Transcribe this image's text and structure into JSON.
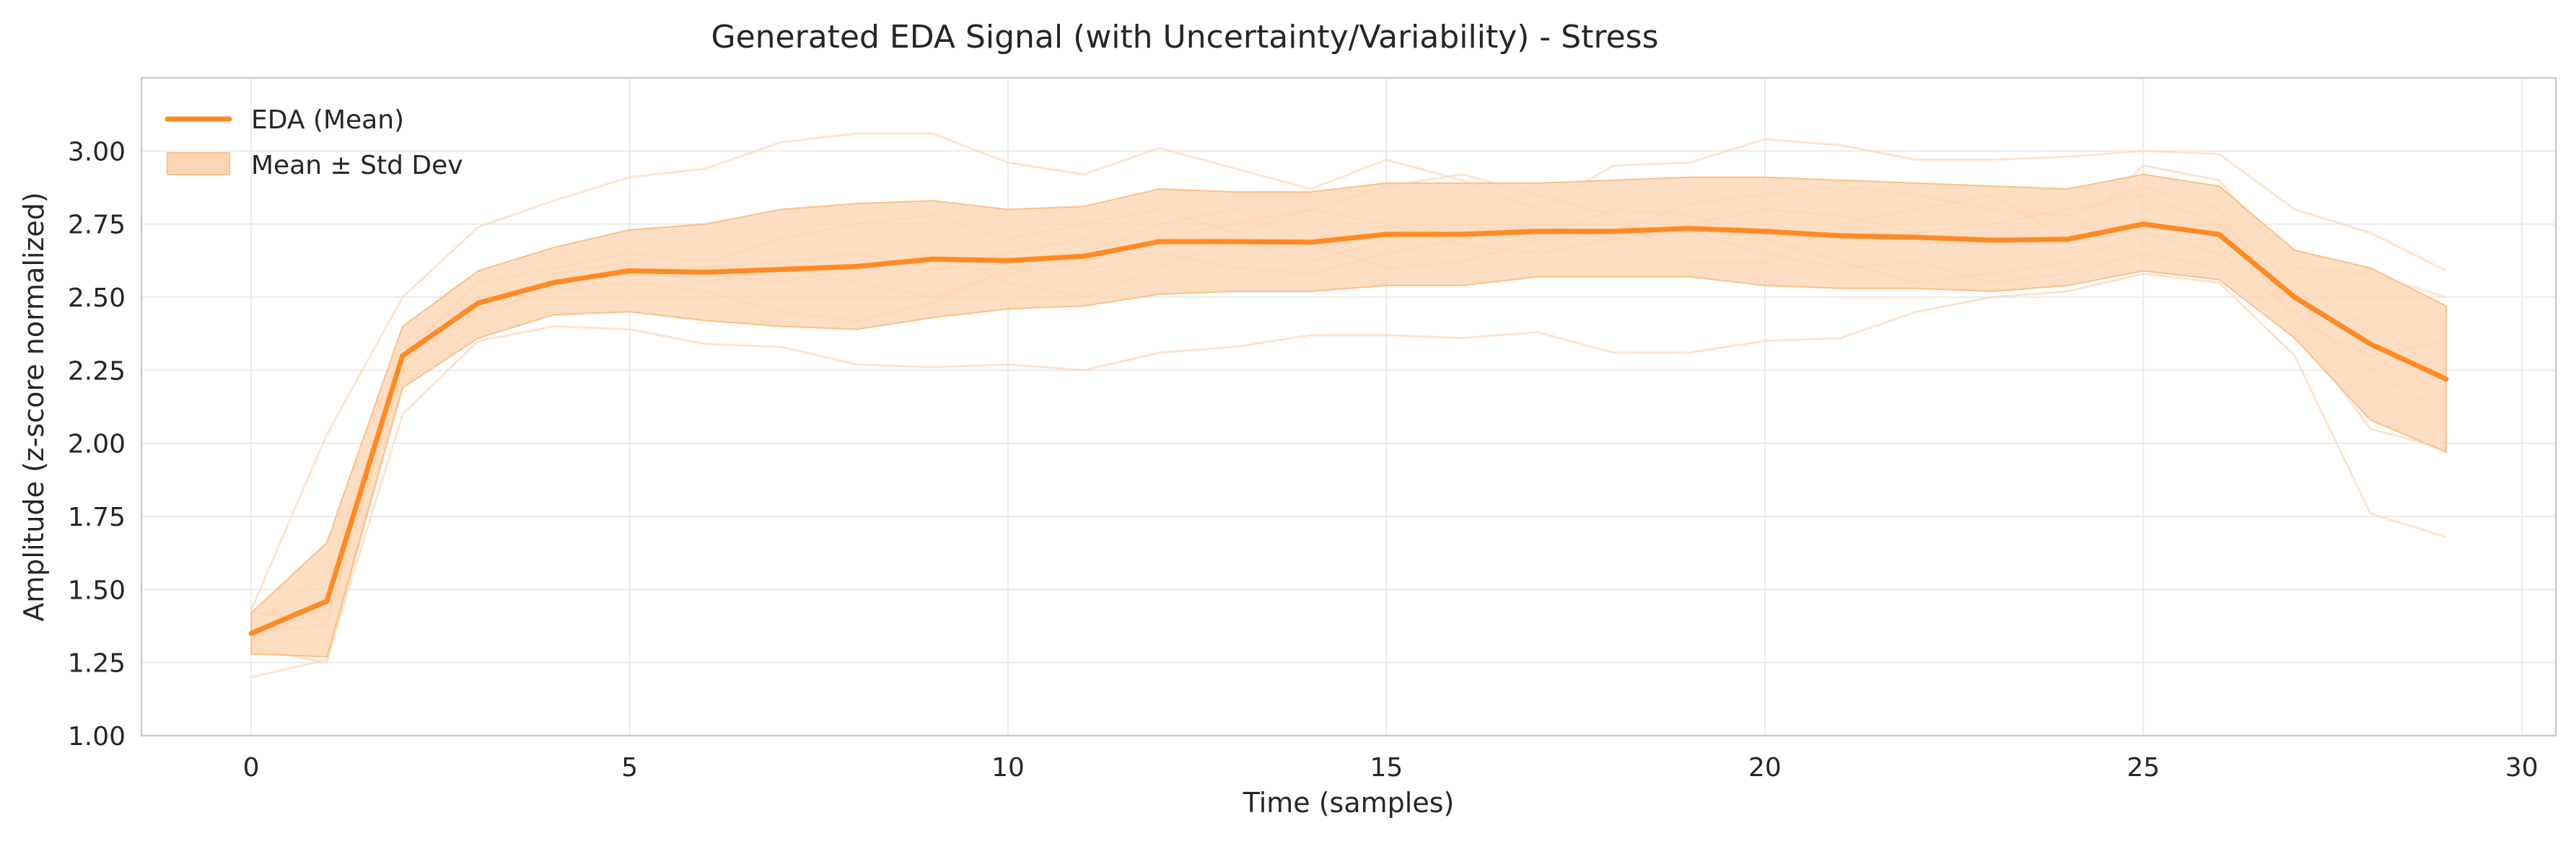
{
  "chart_data": {
    "type": "line",
    "title": "Generated EDA Signal (with Uncertainty/Variability) - Stress",
    "xlabel": "Time (samples)",
    "ylabel": "Amplitude (z-score normalized)",
    "xlim": [
      -1.45,
      30.45
    ],
    "ylim": [
      1.0,
      3.25
    ],
    "xticks": [
      0,
      5,
      10,
      15,
      20,
      25,
      30
    ],
    "yticks": [
      1.0,
      1.25,
      1.5,
      1.75,
      2.0,
      2.25,
      2.5,
      2.75,
      3.0
    ],
    "ytick_labels": [
      "1.00",
      "1.25",
      "1.50",
      "1.75",
      "2.00",
      "2.25",
      "2.50",
      "2.75",
      "3.00"
    ],
    "grid": true,
    "legend_position": "top-left",
    "colors": {
      "mean": "#ff8a24",
      "band": "#fdd6b3",
      "band_edge": "#fbbf8a",
      "samples": "#fcd5b5",
      "grid": "#ebebeb",
      "spine": "#cccccc",
      "text": "#262626"
    },
    "x": [
      0,
      1,
      2,
      3,
      4,
      5,
      6,
      7,
      8,
      9,
      10,
      11,
      12,
      13,
      14,
      15,
      16,
      17,
      18,
      19,
      20,
      21,
      22,
      23,
      24,
      25,
      26,
      27,
      28,
      29
    ],
    "series": [
      {
        "name": "EDA (Mean)",
        "values": [
          1.35,
          1.46,
          2.3,
          2.48,
          2.55,
          2.59,
          2.585,
          2.595,
          2.605,
          2.63,
          2.625,
          2.64,
          2.69,
          2.69,
          2.688,
          2.715,
          2.715,
          2.725,
          2.725,
          2.735,
          2.725,
          2.71,
          2.705,
          2.695,
          2.698,
          2.75,
          2.715,
          2.5,
          2.34,
          2.22
        ]
      }
    ],
    "band": {
      "name": "Mean ± Std Dev",
      "upper": [
        1.42,
        1.66,
        2.4,
        2.59,
        2.67,
        2.73,
        2.75,
        2.8,
        2.82,
        2.83,
        2.8,
        2.81,
        2.87,
        2.86,
        2.86,
        2.89,
        2.89,
        2.89,
        2.9,
        2.91,
        2.91,
        2.9,
        2.89,
        2.88,
        2.87,
        2.92,
        2.88,
        2.66,
        2.6,
        2.47
      ],
      "lower": [
        1.28,
        1.27,
        2.19,
        2.36,
        2.44,
        2.45,
        2.42,
        2.4,
        2.39,
        2.43,
        2.46,
        2.47,
        2.51,
        2.52,
        2.52,
        2.54,
        2.54,
        2.57,
        2.57,
        2.57,
        2.54,
        2.53,
        2.53,
        2.52,
        2.54,
        2.59,
        2.56,
        2.36,
        2.08,
        1.97
      ]
    },
    "samples": [
      [
        1.42,
        1.4,
        2.3,
        2.55,
        2.6,
        2.65,
        2.62,
        2.7,
        2.75,
        2.78,
        2.7,
        2.75,
        2.8,
        2.72,
        2.8,
        2.88,
        2.92,
        2.85,
        2.78,
        2.62,
        2.62,
        2.75,
        2.8,
        2.85,
        2.7,
        2.95,
        2.9,
        2.6,
        2.58,
        2.5
      ],
      [
        1.3,
        1.25,
        2.2,
        2.4,
        2.58,
        2.62,
        2.58,
        2.55,
        2.6,
        2.65,
        2.55,
        2.5,
        2.6,
        2.7,
        2.62,
        2.7,
        2.75,
        2.7,
        2.72,
        2.82,
        2.85,
        2.88,
        2.85,
        2.8,
        2.78,
        2.88,
        2.8,
        2.42,
        2.3,
        2.35
      ],
      [
        1.2,
        1.26,
        2.1,
        2.35,
        2.4,
        2.39,
        2.34,
        2.33,
        2.27,
        2.26,
        2.27,
        2.25,
        2.31,
        2.33,
        2.37,
        2.37,
        2.36,
        2.38,
        2.31,
        2.31,
        2.35,
        2.36,
        2.45,
        2.5,
        2.52,
        2.58,
        2.55,
        2.3,
        1.76,
        1.68
      ],
      [
        1.43,
        2.03,
        2.5,
        2.74,
        2.83,
        2.91,
        2.94,
        3.03,
        3.06,
        3.06,
        2.96,
        2.92,
        3.01,
        2.94,
        2.87,
        2.97,
        2.9,
        2.8,
        2.95,
        2.96,
        3.04,
        3.02,
        2.97,
        2.97,
        2.98,
        3.0,
        2.99,
        2.8,
        2.72,
        2.59
      ],
      [
        1.35,
        1.38,
        2.25,
        2.45,
        2.52,
        2.55,
        2.52,
        2.45,
        2.42,
        2.48,
        2.6,
        2.65,
        2.75,
        2.8,
        2.68,
        2.6,
        2.62,
        2.7,
        2.8,
        2.78,
        2.7,
        2.62,
        2.55,
        2.58,
        2.62,
        2.72,
        2.65,
        2.45,
        2.25,
        2.1
      ],
      [
        1.32,
        1.45,
        2.35,
        2.5,
        2.55,
        2.58,
        2.6,
        2.62,
        2.65,
        2.6,
        2.65,
        2.7,
        2.65,
        2.6,
        2.58,
        2.65,
        2.7,
        2.75,
        2.7,
        2.72,
        2.65,
        2.6,
        2.62,
        2.55,
        2.58,
        2.65,
        2.6,
        2.4,
        2.05,
        1.98
      ],
      [
        1.38,
        1.55,
        2.28,
        2.48,
        2.55,
        2.6,
        2.55,
        2.6,
        2.55,
        2.5,
        2.58,
        2.62,
        2.7,
        2.75,
        2.8,
        2.75,
        2.68,
        2.65,
        2.7,
        2.75,
        2.8,
        2.78,
        2.72,
        2.75,
        2.8,
        2.85,
        2.75,
        2.55,
        2.4,
        2.25
      ]
    ]
  }
}
